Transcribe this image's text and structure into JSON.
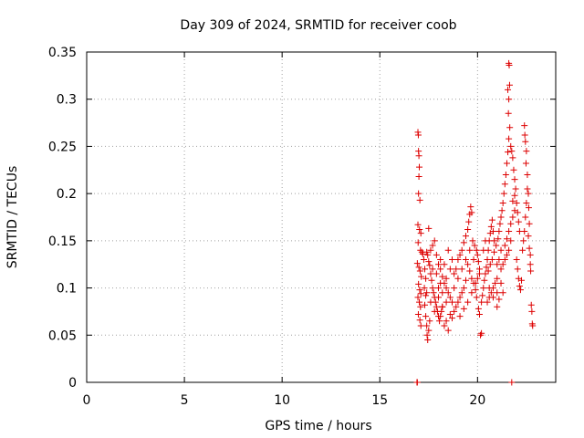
{
  "chart_data": {
    "type": "scatter",
    "title": "Day 309 of 2024, SRMTID for receiver coob",
    "xlabel": "GPS time / hours",
    "ylabel": "SRMTID / TECUs",
    "xlim": [
      0,
      24
    ],
    "ylim": [
      0,
      0.35
    ],
    "xticks": [
      0,
      5,
      10,
      15,
      20
    ],
    "xtick_labels": [
      "0",
      "5",
      "10",
      "15",
      "20"
    ],
    "yticks": [
      0,
      0.05,
      0.1,
      0.15,
      0.2,
      0.25,
      0.3,
      0.35
    ],
    "ytick_labels": [
      "0",
      "0.05",
      "0.1",
      "0.15",
      "0.2",
      "0.25",
      "0.3",
      "0.35"
    ],
    "grid": true,
    "marker": "plus",
    "colors": {
      "series": "#dd0000",
      "grid": "#a0a0a0",
      "axis": "#000000"
    },
    "series": [
      {
        "name": "SRMTID",
        "points": [
          [
            16.9,
            0.0
          ],
          [
            16.92,
            0.0
          ],
          [
            21.75,
            0.0
          ],
          [
            16.95,
            0.265
          ],
          [
            16.97,
            0.262
          ],
          [
            16.98,
            0.245
          ],
          [
            17.0,
            0.24
          ],
          [
            17.02,
            0.228
          ],
          [
            17.0,
            0.218
          ],
          [
            16.98,
            0.2
          ],
          [
            17.05,
            0.193
          ],
          [
            16.95,
            0.167
          ],
          [
            17.03,
            0.162
          ],
          [
            17.1,
            0.158
          ],
          [
            16.96,
            0.148
          ],
          [
            17.08,
            0.14
          ],
          [
            17.15,
            0.138
          ],
          [
            16.92,
            0.126
          ],
          [
            17.0,
            0.122
          ],
          [
            17.06,
            0.118
          ],
          [
            17.12,
            0.112
          ],
          [
            16.98,
            0.104
          ],
          [
            17.04,
            0.098
          ],
          [
            17.1,
            0.094
          ],
          [
            16.95,
            0.09
          ],
          [
            17.02,
            0.085
          ],
          [
            17.08,
            0.08
          ],
          [
            16.97,
            0.072
          ],
          [
            17.05,
            0.066
          ],
          [
            17.1,
            0.06
          ],
          [
            17.2,
            0.136
          ],
          [
            17.25,
            0.13
          ],
          [
            17.3,
            0.12
          ],
          [
            17.35,
            0.11
          ],
          [
            17.28,
            0.1
          ],
          [
            17.35,
            0.092
          ],
          [
            17.3,
            0.082
          ],
          [
            17.35,
            0.07
          ],
          [
            17.4,
            0.06
          ],
          [
            17.42,
            0.05
          ],
          [
            17.45,
            0.045
          ],
          [
            17.5,
            0.055
          ],
          [
            17.55,
            0.065
          ],
          [
            17.4,
            0.138
          ],
          [
            17.45,
            0.135
          ],
          [
            17.5,
            0.128
          ],
          [
            17.55,
            0.124
          ],
          [
            17.5,
            0.163
          ],
          [
            17.6,
            0.115
          ],
          [
            17.65,
            0.108
          ],
          [
            17.7,
            0.1
          ],
          [
            17.75,
            0.095
          ],
          [
            17.8,
            0.09
          ],
          [
            17.85,
            0.085
          ],
          [
            17.9,
            0.08
          ],
          [
            17.95,
            0.075
          ],
          [
            18.0,
            0.07
          ],
          [
            18.05,
            0.065
          ],
          [
            18.1,
            0.07
          ],
          [
            18.15,
            0.075
          ],
          [
            18.2,
            0.08
          ],
          [
            17.6,
            0.14
          ],
          [
            17.7,
            0.145
          ],
          [
            17.8,
            0.15
          ],
          [
            17.9,
            0.135
          ],
          [
            18.0,
            0.125
          ],
          [
            18.1,
            0.12
          ],
          [
            18.2,
            0.112
          ],
          [
            18.3,
            0.105
          ],
          [
            18.4,
            0.1
          ],
          [
            18.5,
            0.095
          ],
          [
            18.6,
            0.09
          ],
          [
            18.7,
            0.085
          ],
          [
            18.3,
            0.06
          ],
          [
            18.4,
            0.065
          ],
          [
            18.5,
            0.055
          ],
          [
            18.6,
            0.072
          ],
          [
            18.7,
            0.068
          ],
          [
            18.8,
            0.075
          ],
          [
            18.9,
            0.08
          ],
          [
            19.0,
            0.085
          ],
          [
            19.1,
            0.09
          ],
          [
            19.2,
            0.095
          ],
          [
            19.3,
            0.1
          ],
          [
            19.4,
            0.108
          ],
          [
            18.8,
            0.115
          ],
          [
            18.9,
            0.12
          ],
          [
            19.0,
            0.13
          ],
          [
            19.1,
            0.135
          ],
          [
            19.2,
            0.14
          ],
          [
            19.3,
            0.148
          ],
          [
            19.4,
            0.155
          ],
          [
            19.5,
            0.162
          ],
          [
            19.55,
            0.17
          ],
          [
            19.6,
            0.178
          ],
          [
            19.65,
            0.186
          ],
          [
            19.7,
            0.18
          ],
          [
            19.5,
            0.125
          ],
          [
            19.6,
            0.118
          ],
          [
            19.7,
            0.11
          ],
          [
            19.8,
            0.105
          ],
          [
            19.9,
            0.098
          ],
          [
            19.95,
            0.09
          ],
          [
            19.75,
            0.15
          ],
          [
            19.85,
            0.145
          ],
          [
            19.95,
            0.14
          ],
          [
            20.0,
            0.135
          ],
          [
            20.05,
            0.128
          ],
          [
            20.1,
            0.12
          ],
          [
            20.05,
            0.078
          ],
          [
            20.1,
            0.072
          ],
          [
            20.15,
            0.05
          ],
          [
            20.2,
            0.052
          ],
          [
            20.2,
            0.085
          ],
          [
            20.25,
            0.092
          ],
          [
            20.3,
            0.1
          ],
          [
            20.35,
            0.108
          ],
          [
            20.4,
            0.115
          ],
          [
            20.45,
            0.122
          ],
          [
            20.5,
            0.13
          ],
          [
            20.55,
            0.14
          ],
          [
            20.6,
            0.15
          ],
          [
            20.65,
            0.158
          ],
          [
            20.7,
            0.165
          ],
          [
            20.75,
            0.172
          ],
          [
            20.8,
            0.16
          ],
          [
            20.85,
            0.15
          ],
          [
            20.5,
            0.085
          ],
          [
            20.6,
            0.09
          ],
          [
            20.7,
            0.095
          ],
          [
            20.8,
            0.1
          ],
          [
            20.9,
            0.105
          ],
          [
            21.0,
            0.11
          ],
          [
            20.55,
            0.118
          ],
          [
            20.65,
            0.125
          ],
          [
            20.75,
            0.13
          ],
          [
            20.85,
            0.138
          ],
          [
            20.95,
            0.145
          ],
          [
            21.05,
            0.152
          ],
          [
            21.1,
            0.16
          ],
          [
            21.15,
            0.168
          ],
          [
            21.2,
            0.175
          ],
          [
            21.25,
            0.182
          ],
          [
            21.3,
            0.19
          ],
          [
            21.35,
            0.2
          ],
          [
            21.4,
            0.21
          ],
          [
            21.45,
            0.22
          ],
          [
            21.5,
            0.232
          ],
          [
            21.55,
            0.244
          ],
          [
            21.6,
            0.258
          ],
          [
            21.65,
            0.27
          ],
          [
            21.55,
            0.31
          ],
          [
            21.6,
            0.338
          ],
          [
            21.62,
            0.336
          ],
          [
            21.64,
            0.315
          ],
          [
            21.6,
            0.3
          ],
          [
            21.58,
            0.285
          ],
          [
            21.7,
            0.25
          ],
          [
            21.75,
            0.245
          ],
          [
            21.8,
            0.238
          ],
          [
            21.85,
            0.225
          ],
          [
            21.9,
            0.215
          ],
          [
            21.95,
            0.205
          ],
          [
            21.4,
            0.145
          ],
          [
            21.5,
            0.152
          ],
          [
            21.6,
            0.16
          ],
          [
            21.7,
            0.168
          ],
          [
            21.8,
            0.175
          ],
          [
            21.9,
            0.182
          ],
          [
            21.2,
            0.12
          ],
          [
            21.3,
            0.125
          ],
          [
            21.4,
            0.13
          ],
          [
            21.5,
            0.135
          ],
          [
            21.6,
            0.14
          ],
          [
            21.7,
            0.15
          ],
          [
            21.8,
            0.192
          ],
          [
            21.9,
            0.198
          ],
          [
            22.0,
            0.19
          ],
          [
            22.05,
            0.18
          ],
          [
            22.1,
            0.17
          ],
          [
            22.15,
            0.16
          ],
          [
            22.0,
            0.13
          ],
          [
            22.05,
            0.12
          ],
          [
            22.1,
            0.11
          ],
          [
            22.15,
            0.102
          ],
          [
            22.2,
            0.098
          ],
          [
            22.25,
            0.108
          ],
          [
            22.3,
            0.14
          ],
          [
            22.35,
            0.15
          ],
          [
            22.4,
            0.16
          ],
          [
            22.45,
            0.175
          ],
          [
            22.5,
            0.19
          ],
          [
            22.55,
            0.205
          ],
          [
            22.4,
            0.272
          ],
          [
            22.42,
            0.262
          ],
          [
            22.45,
            0.255
          ],
          [
            22.5,
            0.245
          ],
          [
            22.48,
            0.232
          ],
          [
            22.55,
            0.22
          ],
          [
            22.6,
            0.2
          ],
          [
            22.62,
            0.185
          ],
          [
            22.65,
            0.168
          ],
          [
            22.6,
            0.155
          ],
          [
            22.65,
            0.142
          ],
          [
            22.7,
            0.135
          ],
          [
            22.7,
            0.125
          ],
          [
            22.72,
            0.118
          ],
          [
            22.75,
            0.082
          ],
          [
            22.78,
            0.075
          ],
          [
            22.8,
            0.062
          ],
          [
            22.82,
            0.06
          ],
          [
            21.0,
            0.125
          ],
          [
            21.1,
            0.13
          ],
          [
            21.2,
            0.105
          ],
          [
            21.3,
            0.095
          ],
          [
            21.1,
            0.088
          ],
          [
            21.0,
            0.08
          ],
          [
            18.0,
            0.1
          ],
          [
            18.1,
            0.105
          ],
          [
            18.2,
            0.095
          ],
          [
            18.4,
            0.11
          ],
          [
            18.6,
            0.12
          ],
          [
            18.8,
            0.1
          ],
          [
            19.0,
            0.11
          ],
          [
            19.2,
            0.12
          ],
          [
            19.4,
            0.13
          ],
          [
            19.6,
            0.14
          ],
          [
            19.8,
            0.13
          ],
          [
            20.0,
            0.11
          ],
          [
            17.7,
            0.12
          ],
          [
            17.9,
            0.115
          ],
          [
            18.1,
            0.13
          ],
          [
            18.3,
            0.125
          ],
          [
            18.5,
            0.14
          ],
          [
            18.7,
            0.13
          ],
          [
            17.4,
            0.095
          ],
          [
            17.6,
            0.085
          ],
          [
            17.8,
            0.075
          ],
          [
            18.0,
            0.09
          ],
          [
            18.2,
            0.08
          ],
          [
            18.4,
            0.085
          ],
          [
            19.1,
            0.07
          ],
          [
            19.3,
            0.078
          ],
          [
            19.5,
            0.085
          ],
          [
            19.7,
            0.095
          ],
          [
            19.9,
            0.105
          ],
          [
            20.1,
            0.115
          ],
          [
            20.3,
            0.14
          ],
          [
            20.4,
            0.15
          ],
          [
            20.6,
            0.1
          ],
          [
            20.8,
            0.09
          ],
          [
            21.0,
            0.095
          ],
          [
            21.2,
            0.14
          ]
        ]
      }
    ]
  }
}
